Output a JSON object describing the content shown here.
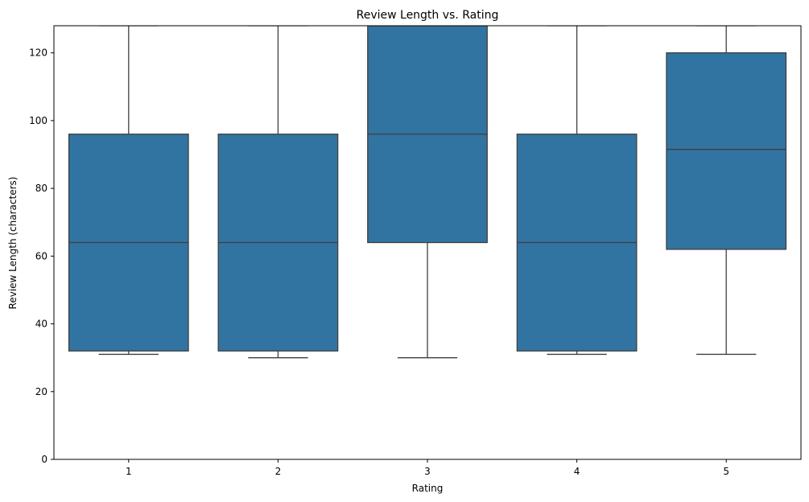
{
  "chart_data": {
    "type": "box",
    "title": "Review Length vs. Rating",
    "xlabel": "Rating",
    "ylabel": "Review Length (characters)",
    "categories": [
      "1",
      "2",
      "3",
      "4",
      "5"
    ],
    "boxes": [
      {
        "category": "1",
        "whisker_low": 31,
        "q1": 32,
        "median": 64,
        "q3": 96,
        "whisker_high": 128
      },
      {
        "category": "2",
        "whisker_low": 30,
        "q1": 32,
        "median": 64,
        "q3": 96,
        "whisker_high": 128
      },
      {
        "category": "3",
        "whisker_low": 30,
        "q1": 64,
        "median": 96,
        "q3": 128,
        "whisker_high": 128
      },
      {
        "category": "4",
        "whisker_low": 31,
        "q1": 32,
        "median": 64,
        "q3": 96,
        "whisker_high": 128
      },
      {
        "category": "5",
        "whisker_low": 31,
        "q1": 62,
        "median": 91.5,
        "q3": 120,
        "whisker_high": 128
      }
    ],
    "ylim": [
      0,
      128
    ],
    "yticks": [
      0,
      20,
      40,
      60,
      80,
      100,
      120
    ],
    "grid": false,
    "box_color": "#3274a1",
    "line_color": "#3f3f3f"
  }
}
